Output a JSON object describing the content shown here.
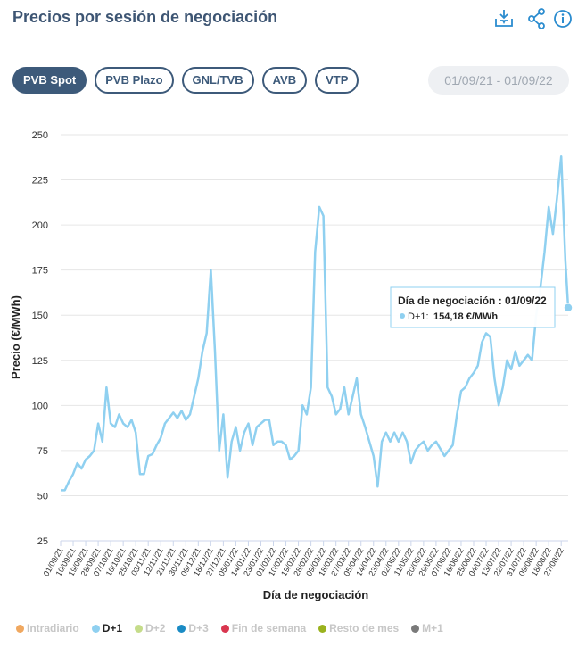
{
  "header": {
    "title": "Precios por sesión de negociación",
    "tabs": [
      "PVB Spot",
      "PVB Plazo",
      "GNL/TVB",
      "AVB",
      "VTP"
    ],
    "active_tab": 0,
    "date_range": "01/09/21 - 01/09/22"
  },
  "chart_data": {
    "type": "line",
    "x_label": "Día de negociación",
    "y_label": "Precio (€/MWh)",
    "ylim": [
      25,
      250
    ],
    "yticks": [
      25,
      50,
      75,
      100,
      125,
      150,
      175,
      200,
      225,
      250
    ],
    "grid": true,
    "xlim": [
      "01/09/21",
      "01/09/22"
    ],
    "xticks": [
      "01/09/21",
      "10/09/21",
      "19/09/21",
      "28/09/21",
      "07/10/21",
      "16/10/21",
      "25/10/21",
      "03/11/21",
      "12/11/21",
      "21/11/21",
      "30/11/21",
      "09/12/21",
      "18/12/21",
      "27/12/21",
      "05/01/22",
      "14/01/22",
      "23/01/22",
      "01/02/22",
      "10/02/22",
      "19/02/22",
      "28/02/22",
      "09/03/22",
      "18/03/22",
      "27/03/22",
      "05/04/22",
      "14/04/22",
      "23/04/22",
      "02/05/22",
      "11/05/22",
      "20/05/22",
      "29/05/22",
      "07/06/22",
      "16/06/22",
      "25/06/22",
      "04/07/22",
      "13/07/22",
      "22/07/22",
      "31/07/22",
      "09/08/22",
      "18/08/22",
      "27/08/22"
    ],
    "x": [
      "01/09/21",
      "04/09/21",
      "07/09/21",
      "10/09/21",
      "13/09/21",
      "16/09/21",
      "19/09/21",
      "22/09/21",
      "25/09/21",
      "28/09/21",
      "01/10/21",
      "04/10/21",
      "07/10/21",
      "10/10/21",
      "13/10/21",
      "16/10/21",
      "19/10/21",
      "22/10/21",
      "25/10/21",
      "28/10/21",
      "31/10/21",
      "03/11/21",
      "06/11/21",
      "09/11/21",
      "12/11/21",
      "15/11/21",
      "18/11/21",
      "21/11/21",
      "24/11/21",
      "27/11/21",
      "30/11/21",
      "03/12/21",
      "06/12/21",
      "09/12/21",
      "12/12/21",
      "15/12/21",
      "18/12/21",
      "21/12/21",
      "24/12/21",
      "27/12/21",
      "30/12/21",
      "02/01/22",
      "05/01/22",
      "08/01/22",
      "11/01/22",
      "14/01/22",
      "17/01/22",
      "20/01/22",
      "23/01/22",
      "26/01/22",
      "29/01/22",
      "01/02/22",
      "04/02/22",
      "07/02/22",
      "10/02/22",
      "13/02/22",
      "16/02/22",
      "19/02/22",
      "22/02/22",
      "25/02/22",
      "28/02/22",
      "03/03/22",
      "06/03/22",
      "09/03/22",
      "12/03/22",
      "15/03/22",
      "18/03/22",
      "21/03/22",
      "24/03/22",
      "27/03/22",
      "30/03/22",
      "02/04/22",
      "05/04/22",
      "08/04/22",
      "11/04/22",
      "14/04/22",
      "17/04/22",
      "20/04/22",
      "23/04/22",
      "26/04/22",
      "29/04/22",
      "02/05/22",
      "05/05/22",
      "08/05/22",
      "11/05/22",
      "14/05/22",
      "17/05/22",
      "20/05/22",
      "23/05/22",
      "26/05/22",
      "29/05/22",
      "01/06/22",
      "04/06/22",
      "07/06/22",
      "10/06/22",
      "13/06/22",
      "16/06/22",
      "19/06/22",
      "22/06/22",
      "25/06/22",
      "28/06/22",
      "01/07/22",
      "04/07/22",
      "07/07/22",
      "10/07/22",
      "13/07/22",
      "16/07/22",
      "19/07/22",
      "22/07/22",
      "25/07/22",
      "28/07/22",
      "31/07/22",
      "03/08/22",
      "06/08/22",
      "09/08/22",
      "12/08/22",
      "15/08/22",
      "18/08/22",
      "21/08/22",
      "24/08/22",
      "27/08/22",
      "30/08/22",
      "01/09/22"
    ],
    "series": [
      {
        "name": "D+1",
        "color": "#8fd0f0",
        "values": [
          53,
          53,
          58,
          62,
          68,
          65,
          70,
          72,
          75,
          90,
          80,
          110,
          90,
          88,
          95,
          90,
          88,
          92,
          85,
          62,
          62,
          72,
          73,
          78,
          82,
          90,
          93,
          96,
          93,
          97,
          92,
          95,
          105,
          115,
          130,
          140,
          175,
          130,
          75,
          95,
          60,
          80,
          88,
          75,
          85,
          90,
          78,
          88,
          90,
          92,
          92,
          78,
          80,
          80,
          78,
          70,
          72,
          75,
          100,
          95,
          110,
          185,
          210,
          205,
          110,
          105,
          95,
          98,
          110,
          95,
          105,
          115,
          95,
          88,
          80,
          72,
          55,
          80,
          85,
          80,
          85,
          80,
          85,
          80,
          68,
          75,
          78,
          80,
          75,
          78,
          80,
          76,
          72,
          75,
          78,
          95,
          108,
          110,
          115,
          118,
          122,
          135,
          140,
          138,
          115,
          100,
          110,
          125,
          120,
          130,
          122,
          125,
          128,
          125,
          150,
          165,
          185,
          210,
          195,
          215,
          238,
          180,
          154.18
        ]
      }
    ],
    "other_series": [
      {
        "name": "Intradiario",
        "color": "#f0a860"
      },
      {
        "name": "D+2",
        "color": "#c5dc8a"
      },
      {
        "name": "D+3",
        "color": "#1a8bc4"
      },
      {
        "name": "Fin de semana",
        "color": "#d9364f"
      },
      {
        "name": "Resto de mes",
        "color": "#9ab21e"
      },
      {
        "name": "M+1",
        "color": "#7a7a7a"
      }
    ],
    "tooltip": {
      "title": "Día de negociación : 01/09/22",
      "series_label": "D+1:",
      "value_label": "154,18 €/MWh"
    }
  }
}
